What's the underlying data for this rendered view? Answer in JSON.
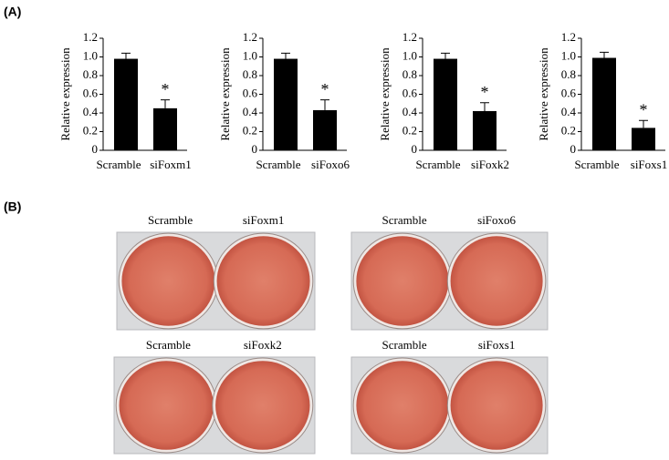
{
  "panel_labels": [
    "(A)",
    "(B)"
  ],
  "chart_data": [
    {
      "type": "bar",
      "y_label": "Relative expression",
      "categories": [
        "Scramble",
        "siFoxm1"
      ],
      "values": [
        0.98,
        0.45
      ],
      "errors": [
        0.06,
        0.09
      ],
      "color": "#000000",
      "annotations": [
        {
          "category": "siFoxm1",
          "text": "*"
        }
      ],
      "ylim": [
        0,
        1.2
      ],
      "yticks": [
        0,
        0.2,
        0.4,
        0.6,
        0.8,
        {
          "value": 1,
          "label": "1.0"
        },
        1.2
      ]
    },
    {
      "type": "bar",
      "y_label": "Relative expression",
      "categories": [
        "Scramble",
        "siFoxo6"
      ],
      "values": [
        0.98,
        0.43
      ],
      "errors": [
        0.06,
        0.11
      ],
      "color": "#000000",
      "annotations": [
        {
          "category": "siFoxo6",
          "text": "*"
        }
      ],
      "ylim": [
        0,
        1.2
      ],
      "yticks": [
        0,
        0.2,
        0.4,
        0.6,
        0.8,
        {
          "value": 1,
          "label": "1.0"
        },
        1.2
      ]
    },
    {
      "type": "bar",
      "y_label": "Relative expression",
      "categories": [
        "Scramble",
        "siFoxk2"
      ],
      "values": [
        0.98,
        0.42
      ],
      "errors": [
        0.06,
        0.09
      ],
      "color": "#000000",
      "annotations": [
        {
          "category": "siFoxk2",
          "text": "*"
        }
      ],
      "ylim": [
        0,
        1.2
      ],
      "yticks": [
        0,
        0.2,
        0.4,
        0.6,
        0.8,
        {
          "value": 1,
          "label": "1.0"
        },
        1.2
      ]
    },
    {
      "type": "bar",
      "y_label": "Relative expression",
      "categories": [
        "Scramble",
        "siFoxs1"
      ],
      "values": [
        0.99,
        0.24
      ],
      "errors": [
        0.06,
        0.08
      ],
      "color": "#000000",
      "annotations": [
        {
          "category": "siFoxs1",
          "text": "*"
        }
      ],
      "ylim": [
        0,
        1.2
      ],
      "yticks": [
        0,
        0.2,
        0.4,
        0.6,
        0.8,
        {
          "value": 1,
          "label": "1.0"
        },
        1.2
      ]
    }
  ],
  "photos": [
    {
      "labels": [
        "Scramble",
        "siFoxm1"
      ]
    },
    {
      "labels": [
        "Scramble",
        "siFoxo6"
      ]
    },
    {
      "labels": [
        "Scramble",
        "siFoxk2"
      ]
    },
    {
      "labels": [
        "Scramble",
        "siFoxs1"
      ]
    }
  ]
}
